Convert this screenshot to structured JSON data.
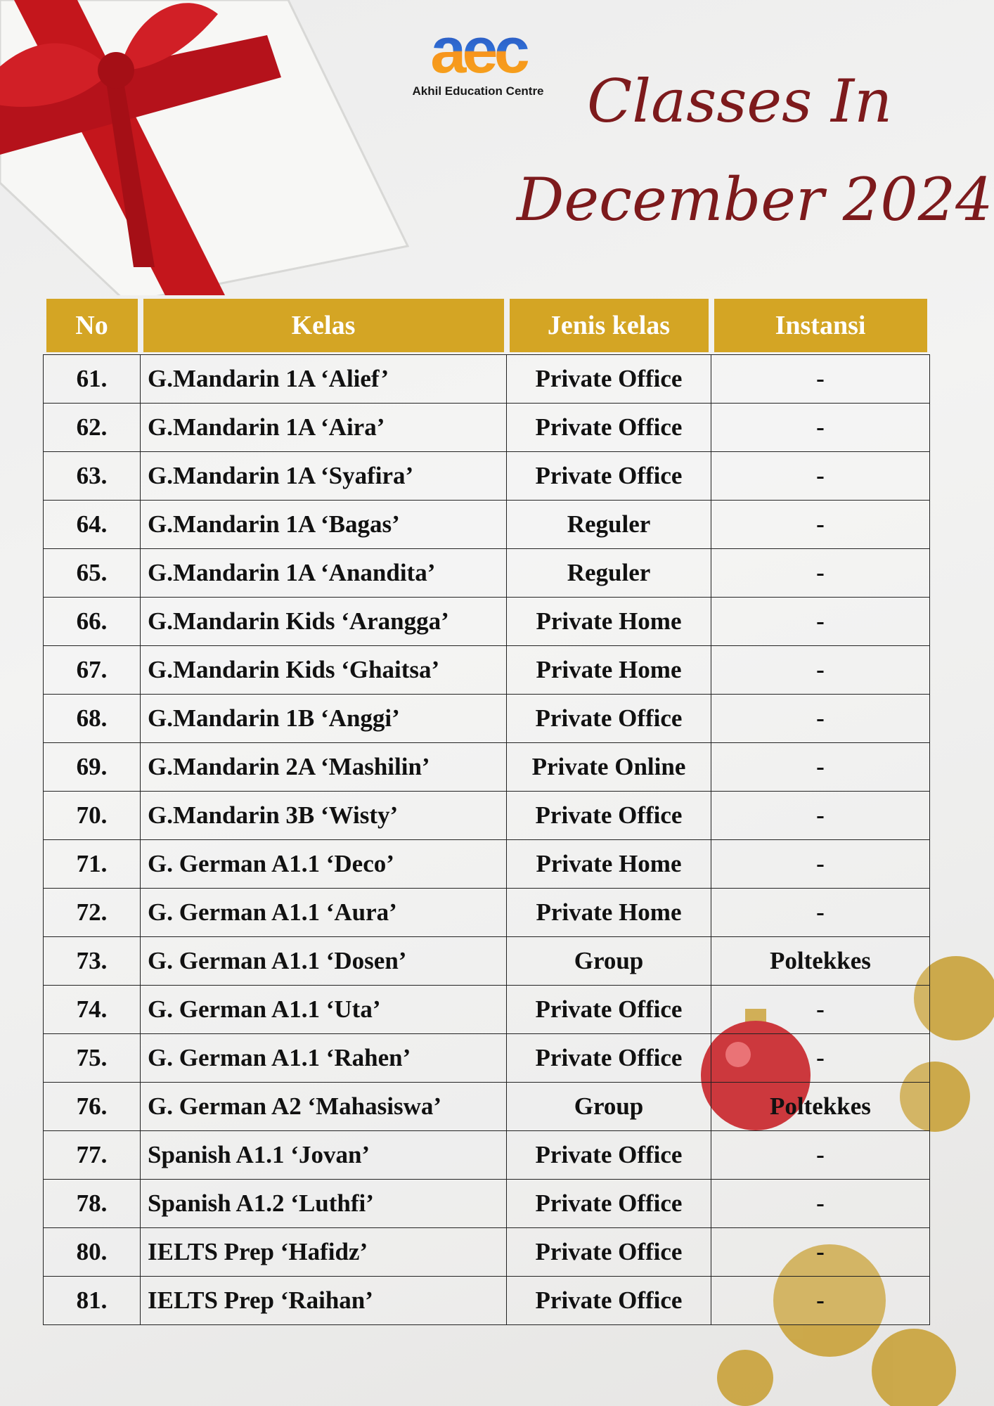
{
  "logo": {
    "mark": "aec",
    "name": "Akhil Education Centre"
  },
  "title": {
    "line1": "Classes In",
    "line2": "December 2024"
  },
  "table": {
    "headers": [
      "No",
      "Kelas",
      "Jenis kelas",
      "Instansi"
    ],
    "rows": [
      {
        "no": "61.",
        "kelas": "G.Mandarin 1A ‘Alief’",
        "jenis": "Private Office",
        "instansi": "-"
      },
      {
        "no": "62.",
        "kelas": "G.Mandarin 1A ‘Aira’",
        "jenis": "Private Office",
        "instansi": "-"
      },
      {
        "no": "63.",
        "kelas": "G.Mandarin 1A ‘Syafira’",
        "jenis": "Private Office",
        "instansi": "-"
      },
      {
        "no": "64.",
        "kelas": "G.Mandarin 1A ‘Bagas’",
        "jenis": "Reguler",
        "instansi": "-"
      },
      {
        "no": "65.",
        "kelas": "G.Mandarin 1A ‘Anandita’",
        "jenis": "Reguler",
        "instansi": "-"
      },
      {
        "no": "66.",
        "kelas": "G.Mandarin Kids ‘Arangga’",
        "jenis": "Private Home",
        "instansi": "-"
      },
      {
        "no": "67.",
        "kelas": "G.Mandarin Kids ‘Ghaitsa’",
        "jenis": "Private Home",
        "instansi": "-"
      },
      {
        "no": "68.",
        "kelas": "G.Mandarin 1B ‘Anggi’",
        "jenis": "Private Office",
        "instansi": "-"
      },
      {
        "no": "69.",
        "kelas": "G.Mandarin 2A ‘Mashilin’",
        "jenis": "Private Online",
        "instansi": "-"
      },
      {
        "no": "70.",
        "kelas": "G.Mandarin 3B ‘Wisty’",
        "jenis": "Private Office",
        "instansi": "-"
      },
      {
        "no": "71.",
        "kelas": "G. German A1.1 ‘Deco’",
        "jenis": "Private Home",
        "instansi": "-"
      },
      {
        "no": "72.",
        "kelas": "G. German A1.1 ‘Aura’",
        "jenis": "Private Home",
        "instansi": "-"
      },
      {
        "no": "73.",
        "kelas": "G. German A1.1 ‘Dosen’",
        "jenis": "Group",
        "instansi": "Poltekkes"
      },
      {
        "no": "74.",
        "kelas": "G. German A1.1 ‘Uta’",
        "jenis": "Private Office",
        "instansi": "-"
      },
      {
        "no": "75.",
        "kelas": "G. German A1.1 ‘Rahen’",
        "jenis": "Private Office",
        "instansi": "-"
      },
      {
        "no": "76.",
        "kelas": "G. German A2 ‘Mahasiswa’",
        "jenis": "Group",
        "instansi": "Poltekkes"
      },
      {
        "no": "77.",
        "kelas": "Spanish A1.1 ‘Jovan’",
        "jenis": "Private Office",
        "instansi": "-"
      },
      {
        "no": "78.",
        "kelas": "Spanish A1.2 ‘Luthfi’",
        "jenis": "Private Office",
        "instansi": "-"
      },
      {
        "no": "80.",
        "kelas": "IELTS Prep ‘Hafidz’",
        "jenis": "Private Office",
        "instansi": "-"
      },
      {
        "no": "81.",
        "kelas": "IELTS Prep ‘Raihan’",
        "jenis": "Private Office",
        "instansi": "-"
      }
    ]
  },
  "colors": {
    "title": "#7d1a1c",
    "header_bg": "#d4a524",
    "ribbon": "#c4161c",
    "gold": "#c9a23a"
  }
}
